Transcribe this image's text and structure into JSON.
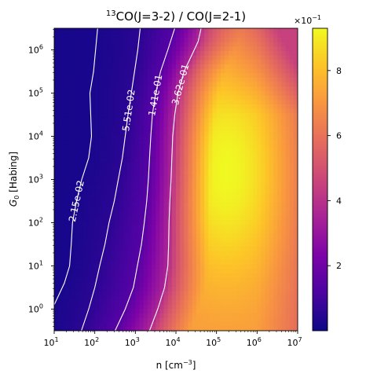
{
  "chart_data": {
    "type": "heatmap",
    "title": {
      "iso": "13",
      "text": "CO(J=3-2) / CO(J=2-1)"
    },
    "xlabel": {
      "base": "n [cm",
      "sup": "−3",
      "close": "]"
    },
    "ylabel": {
      "sym": "G",
      "sub": "0",
      "rest": " [Habing]"
    },
    "x_scale": "log",
    "y_scale": "log",
    "xlim": [
      1.0,
      7.0
    ],
    "ylim": [
      -0.5,
      6.5
    ],
    "x_ticks": [
      {
        "pos": 1,
        "label": "10",
        "exp": "1"
      },
      {
        "pos": 2,
        "label": "10",
        "exp": "2"
      },
      {
        "pos": 3,
        "label": "10",
        "exp": "3"
      },
      {
        "pos": 4,
        "label": "10",
        "exp": "4"
      },
      {
        "pos": 5,
        "label": "10",
        "exp": "5"
      },
      {
        "pos": 6,
        "label": "10",
        "exp": "6"
      },
      {
        "pos": 7,
        "label": "10",
        "exp": "7"
      }
    ],
    "y_ticks": [
      {
        "pos": 0,
        "label": "10",
        "exp": "0"
      },
      {
        "pos": 1,
        "label": "10",
        "exp": "1"
      },
      {
        "pos": 2,
        "label": "10",
        "exp": "2"
      },
      {
        "pos": 3,
        "label": "10",
        "exp": "3"
      },
      {
        "pos": 4,
        "label": "10",
        "exp": "4"
      },
      {
        "pos": 5,
        "label": "10",
        "exp": "5"
      },
      {
        "pos": 6,
        "label": "10",
        "exp": "6"
      }
    ],
    "colormap": "plasma",
    "colorbar": {
      "range": [
        0.0,
        0.93
      ],
      "offset_text": {
        "base": "×10",
        "exp": "−1"
      },
      "ticks": [
        {
          "value": 0.2,
          "label": "2"
        },
        {
          "value": 0.4,
          "label": "4"
        },
        {
          "value": 0.6,
          "label": "6"
        },
        {
          "value": 0.8,
          "label": "8"
        }
      ]
    },
    "field": {
      "description_values": "log-log grid; ratio values in data units",
      "grid_nx": 60,
      "grid_ny": 68,
      "peak_value": 0.93,
      "peak_location_log_n": 5.25,
      "peak_location_log_G0": 3.2,
      "min_value": 0.03
    },
    "contours": [
      {
        "level": 0.0215,
        "label": "2.15e-02",
        "label_at": [
          1.8,
          2.5
        ],
        "points": [
          [
            1.0,
            0.1
          ],
          [
            1.25,
            0.6
          ],
          [
            1.38,
            1.0
          ],
          [
            1.42,
            1.5
          ],
          [
            1.45,
            2.0
          ],
          [
            1.55,
            2.5
          ],
          [
            1.68,
            3.0
          ],
          [
            1.85,
            3.5
          ],
          [
            1.92,
            4.0
          ],
          [
            1.9,
            4.5
          ],
          [
            1.88,
            5.0
          ],
          [
            1.97,
            5.5
          ],
          [
            2.02,
            6.0
          ],
          [
            2.07,
            6.5
          ]
        ]
      },
      {
        "level": 0.0551,
        "label": "5.51e-02",
        "label_at": [
          2.85,
          4.6
        ],
        "points": [
          [
            1.67,
            -0.5
          ],
          [
            1.85,
            0.0
          ],
          [
            2.0,
            0.5
          ],
          [
            2.12,
            1.0
          ],
          [
            2.25,
            1.5
          ],
          [
            2.35,
            2.0
          ],
          [
            2.48,
            2.5
          ],
          [
            2.58,
            3.0
          ],
          [
            2.68,
            3.5
          ],
          [
            2.75,
            4.0
          ],
          [
            2.82,
            4.5
          ],
          [
            2.9,
            5.0
          ],
          [
            2.98,
            5.5
          ],
          [
            3.06,
            6.0
          ],
          [
            3.12,
            6.5
          ]
        ]
      },
      {
        "level": 0.141,
        "label": "1.41e-01",
        "label_at": [
          3.45,
          4.95
        ],
        "points": [
          [
            2.5,
            -0.5
          ],
          [
            2.75,
            0.0
          ],
          [
            2.95,
            0.5
          ],
          [
            3.05,
            1.0
          ],
          [
            3.15,
            1.5
          ],
          [
            3.22,
            2.0
          ],
          [
            3.28,
            2.5
          ],
          [
            3.32,
            3.0
          ],
          [
            3.35,
            3.5
          ],
          [
            3.38,
            4.0
          ],
          [
            3.42,
            4.5
          ],
          [
            3.5,
            5.0
          ],
          [
            3.62,
            5.5
          ],
          [
            3.8,
            6.0
          ],
          [
            3.97,
            6.5
          ]
        ]
      },
      {
        "level": 0.362,
        "label": "3.62e-01",
        "label_at": [
          4.1,
          5.2
        ],
        "points": [
          [
            3.35,
            -0.5
          ],
          [
            3.55,
            0.0
          ],
          [
            3.72,
            0.5
          ],
          [
            3.8,
            1.0
          ],
          [
            3.82,
            1.5
          ],
          [
            3.83,
            2.0
          ],
          [
            3.85,
            2.5
          ],
          [
            3.88,
            3.0
          ],
          [
            3.9,
            3.5
          ],
          [
            3.92,
            4.0
          ],
          [
            3.97,
            4.5
          ],
          [
            4.05,
            5.0
          ],
          [
            4.2,
            5.5
          ],
          [
            4.45,
            6.0
          ],
          [
            4.55,
            6.2
          ],
          [
            4.62,
            6.5
          ]
        ]
      }
    ]
  }
}
